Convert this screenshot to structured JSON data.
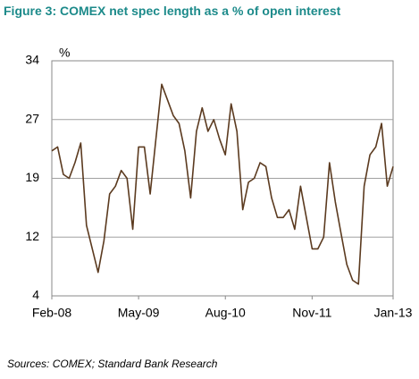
{
  "chart_data": {
    "type": "line",
    "title": "Figure 3: COMEX net spec length as a % of open interest",
    "y_label": "%",
    "source": "Sources: COMEX; Standard Bank Research",
    "x": [
      "2008-02",
      "2008-03",
      "2008-04",
      "2008-05",
      "2008-06",
      "2008-07",
      "2008-08",
      "2008-09",
      "2008-10",
      "2008-11",
      "2008-12",
      "2009-01",
      "2009-02",
      "2009-03",
      "2009-04",
      "2009-05",
      "2009-06",
      "2009-07",
      "2009-08",
      "2009-09",
      "2009-10",
      "2009-11",
      "2009-12",
      "2010-01",
      "2010-02",
      "2010-03",
      "2010-04",
      "2010-05",
      "2010-06",
      "2010-07",
      "2010-08",
      "2010-09",
      "2010-10",
      "2010-11",
      "2010-12",
      "2011-01",
      "2011-02",
      "2011-03",
      "2011-04",
      "2011-05",
      "2011-06",
      "2011-07",
      "2011-08",
      "2011-09",
      "2011-10",
      "2011-11",
      "2011-12",
      "2012-01",
      "2012-02",
      "2012-03",
      "2012-04",
      "2012-05",
      "2012-06",
      "2012-07",
      "2012-08",
      "2012-09",
      "2012-10",
      "2012-11",
      "2012-12",
      "2013-01"
    ],
    "series": [
      {
        "name": "COMEX net spec length",
        "color": "#5b3a1f",
        "values": [
          22.5,
          23,
          19.5,
          19,
          21,
          23.5,
          13,
          10,
          7,
          11,
          17,
          18,
          20,
          19,
          12.5,
          23,
          23,
          17,
          24,
          31,
          29,
          27,
          26,
          22.5,
          16.5,
          25,
          28,
          25,
          26.5,
          24,
          22,
          28.5,
          25,
          15,
          18.5,
          19,
          21,
          20.5,
          16.5,
          14,
          14,
          15,
          12.5,
          18,
          14,
          10,
          10,
          11.5,
          21,
          16,
          12,
          8,
          6,
          5.5,
          18,
          22,
          23,
          26,
          18,
          20.5
        ]
      }
    ],
    "ylim": [
      4,
      34
    ],
    "yticks": [
      4,
      {
        "value": 11.5,
        "label": "12"
      },
      19,
      {
        "value": 26.5,
        "label": "27"
      },
      34
    ],
    "xticks": [
      {
        "value": "2008-02",
        "label": "Feb-08"
      },
      {
        "value": "2009-05",
        "label": "May-09"
      },
      {
        "value": "2010-08",
        "label": "Aug-10"
      },
      {
        "value": "2011-11",
        "label": "Nov-11"
      },
      {
        "value": "2013-01",
        "label": "Jan-13"
      }
    ],
    "grid": true
  }
}
